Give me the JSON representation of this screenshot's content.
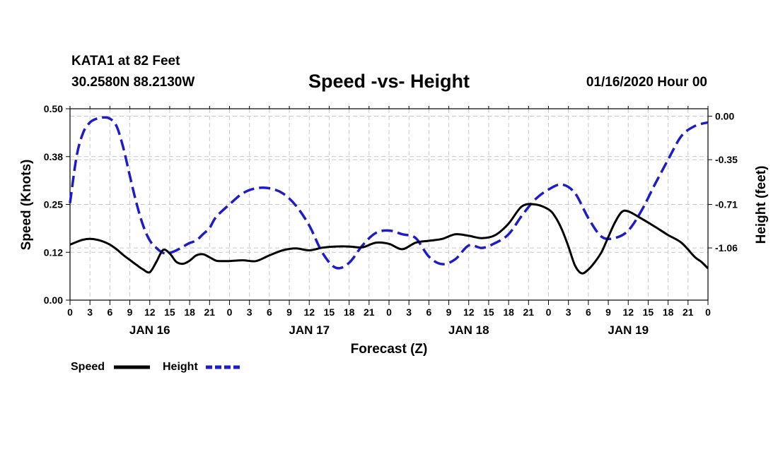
{
  "header": {
    "station": "KATA1 at 82 Feet",
    "coords": "30.2580N 88.2130W",
    "datetime": "01/16/2020 Hour 00"
  },
  "chart_data": {
    "type": "line",
    "title": "Speed -vs- Height",
    "xlabel": "Forecast (Z)",
    "ylabel_left": "Speed (Knots)",
    "ylabel_right": "Height (feet)",
    "x_hours_range": [
      0,
      96
    ],
    "x_tick_labels": [
      "0",
      "3",
      "6",
      "9",
      "12",
      "15",
      "18",
      "21",
      "0",
      "3",
      "6",
      "9",
      "12",
      "15",
      "18",
      "21",
      "0",
      "3",
      "6",
      "9",
      "12",
      "15",
      "18",
      "21",
      "0",
      "3",
      "6",
      "9",
      "12",
      "15",
      "18",
      "21",
      "0"
    ],
    "day_labels": [
      {
        "label": "JAN 16",
        "hour": 12
      },
      {
        "label": "JAN 17",
        "hour": 36
      },
      {
        "label": "JAN 18",
        "hour": 60
      },
      {
        "label": "JAN 19",
        "hour": 84
      }
    ],
    "ylim_left": [
      0,
      0.5
    ],
    "y_ticks_left": [
      {
        "value": 0.0,
        "label": "0.00"
      },
      {
        "value": 0.125,
        "label": "0.12"
      },
      {
        "value": 0.25,
        "label": "0.25"
      },
      {
        "value": 0.375,
        "label": "0.38"
      },
      {
        "value": 0.5,
        "label": "0.50"
      }
    ],
    "ylim_right": [
      -1.48,
      0.06
    ],
    "y_ticks_right": [
      {
        "value": 0.0,
        "label": "0.00"
      },
      {
        "value": -0.35,
        "label": "-0.35"
      },
      {
        "value": -0.71,
        "label": "-0.71"
      },
      {
        "value": -1.06,
        "label": "-1.06"
      }
    ],
    "grid": true,
    "legend_position": "bottom-left",
    "series": [
      {
        "name": "Speed",
        "axis": "left",
        "color": "#000000",
        "style": "solid",
        "x": [
          0,
          1,
          2,
          3,
          4,
          5,
          6,
          7,
          8,
          9,
          10,
          11,
          12,
          13,
          14,
          15,
          16,
          17,
          18,
          19,
          20,
          21,
          22,
          23,
          24,
          26,
          28,
          30,
          32,
          34,
          36,
          38,
          40,
          42,
          44,
          46,
          48,
          50,
          52,
          54,
          56,
          58,
          60,
          62,
          64,
          66,
          68,
          70,
          72,
          73,
          74,
          75,
          76,
          77,
          78,
          79,
          80,
          81,
          82,
          83,
          84,
          86,
          88,
          90,
          92,
          94,
          95,
          96
        ],
        "values": [
          0.145,
          0.152,
          0.158,
          0.16,
          0.158,
          0.153,
          0.145,
          0.133,
          0.118,
          0.105,
          0.092,
          0.08,
          0.073,
          0.1,
          0.131,
          0.122,
          0.1,
          0.095,
          0.103,
          0.117,
          0.12,
          0.112,
          0.103,
          0.102,
          0.102,
          0.104,
          0.102,
          0.117,
          0.13,
          0.135,
          0.13,
          0.137,
          0.14,
          0.14,
          0.138,
          0.15,
          0.147,
          0.133,
          0.15,
          0.155,
          0.16,
          0.172,
          0.168,
          0.162,
          0.17,
          0.2,
          0.245,
          0.25,
          0.237,
          0.218,
          0.185,
          0.14,
          0.09,
          0.07,
          0.08,
          0.1,
          0.126,
          0.165,
          0.203,
          0.23,
          0.232,
          0.213,
          0.192,
          0.17,
          0.15,
          0.113,
          0.1,
          0.083
        ]
      },
      {
        "name": "Height",
        "axis": "right",
        "color": "#1c1cc8",
        "style": "dashed",
        "x": [
          0,
          1,
          2,
          3,
          4,
          5,
          6,
          7,
          8,
          9,
          10,
          11,
          12,
          13,
          14,
          15,
          16,
          17,
          18,
          19,
          20,
          21,
          22,
          24,
          26,
          28,
          30,
          32,
          34,
          36,
          38,
          40,
          42,
          44,
          46,
          48,
          50,
          52,
          54,
          56,
          58,
          60,
          62,
          64,
          66,
          68,
          70,
          72,
          74,
          76,
          78,
          80,
          82,
          84,
          86,
          88,
          90,
          92,
          94,
          96
        ],
        "values": [
          -0.7,
          -0.32,
          -0.13,
          -0.05,
          -0.02,
          -0.01,
          -0.02,
          -0.08,
          -0.25,
          -0.48,
          -0.7,
          -0.88,
          -1.0,
          -1.06,
          -1.1,
          -1.1,
          -1.08,
          -1.05,
          -1.02,
          -1.0,
          -0.95,
          -0.9,
          -0.81,
          -0.71,
          -0.62,
          -0.58,
          -0.58,
          -0.62,
          -0.72,
          -0.88,
          -1.1,
          -1.22,
          -1.18,
          -1.04,
          -0.94,
          -0.92,
          -0.95,
          -0.98,
          -1.13,
          -1.19,
          -1.15,
          -1.04,
          -1.06,
          -1.02,
          -0.95,
          -0.8,
          -0.67,
          -0.59,
          -0.55,
          -0.62,
          -0.82,
          -0.97,
          -0.98,
          -0.92,
          -0.76,
          -0.55,
          -0.35,
          -0.16,
          -0.08,
          -0.05
        ]
      }
    ],
    "legend": [
      {
        "label": "Speed",
        "color": "#000000",
        "style": "solid"
      },
      {
        "label": "Height",
        "color": "#1c1cc8",
        "style": "dashed"
      }
    ]
  }
}
